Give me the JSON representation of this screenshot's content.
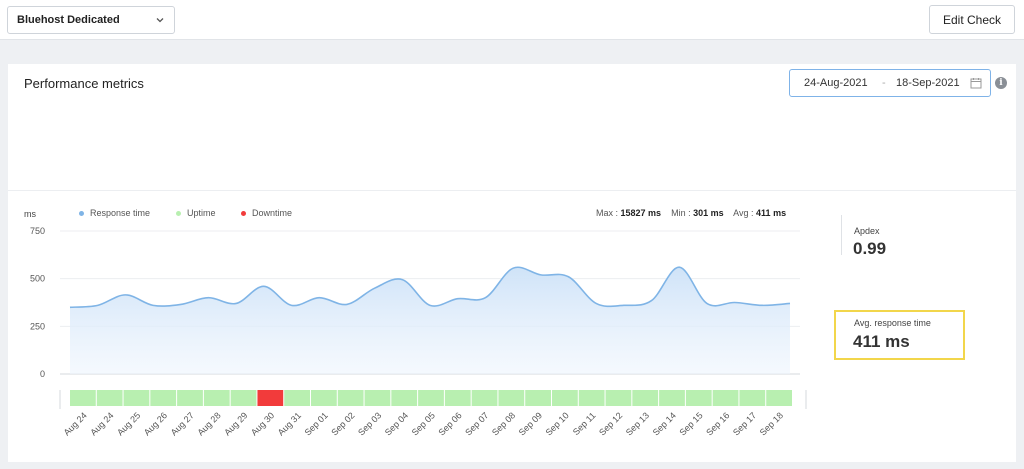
{
  "topbar": {
    "monitor_select": "Bluehost Dedicated",
    "edit_check_label": "Edit Check"
  },
  "panel": {
    "title": "Performance metrics",
    "date_start": "24-Aug-2021",
    "date_sep": "-",
    "date_end": "18-Sep-2021",
    "info_glyph": "i"
  },
  "legend": {
    "unit": "ms",
    "response_time": "Response time",
    "uptime": "Uptime",
    "downtime": "Downtime"
  },
  "stats": {
    "max_label": "Max :",
    "max_value": "15827 ms",
    "min_label": "Min :",
    "min_value": "301 ms",
    "avg_label": "Avg :",
    "avg_value": "411 ms"
  },
  "side": {
    "apdex_label": "Apdex",
    "apdex_value": "0.99",
    "avg_label": "Avg. response time",
    "avg_value": "411 ms"
  },
  "colors": {
    "line": "#7fb4e6",
    "area_top": "#cfe3f8",
    "uptime": "#b8efb0",
    "downtime": "#f23b3b",
    "highlight": "#f2d64b"
  },
  "chart_data": {
    "type": "area",
    "ylabel": "ms",
    "ylim": [
      0,
      750
    ],
    "yticks": [
      0,
      250,
      500,
      750
    ],
    "x_labels": [
      "Aug 24",
      "Aug 24",
      "Aug 25",
      "Aug 26",
      "Aug 27",
      "Aug 28",
      "Aug 29",
      "Aug 30",
      "Aug 31",
      "Sep 01",
      "Sep 02",
      "Sep 03",
      "Sep 04",
      "Sep 05",
      "Sep 06",
      "Sep 07",
      "Sep 08",
      "Sep 09",
      "Sep 10",
      "Sep 11",
      "Sep 12",
      "Sep 13",
      "Sep 14",
      "Sep 15",
      "Sep 16",
      "Sep 17",
      "Sep 18"
    ],
    "series": [
      {
        "name": "Response time",
        "values": [
          350,
          360,
          415,
          360,
          365,
          400,
          370,
          460,
          360,
          400,
          365,
          450,
          495,
          360,
          395,
          400,
          555,
          520,
          510,
          370,
          360,
          385,
          560,
          370,
          375,
          360,
          370
        ]
      }
    ],
    "status": [
      "up",
      "up",
      "up",
      "up",
      "up",
      "up",
      "up",
      "down",
      "up",
      "up",
      "up",
      "up",
      "up",
      "up",
      "up",
      "up",
      "up",
      "up",
      "up",
      "up",
      "up",
      "up",
      "up",
      "up",
      "up",
      "up",
      "up"
    ]
  }
}
